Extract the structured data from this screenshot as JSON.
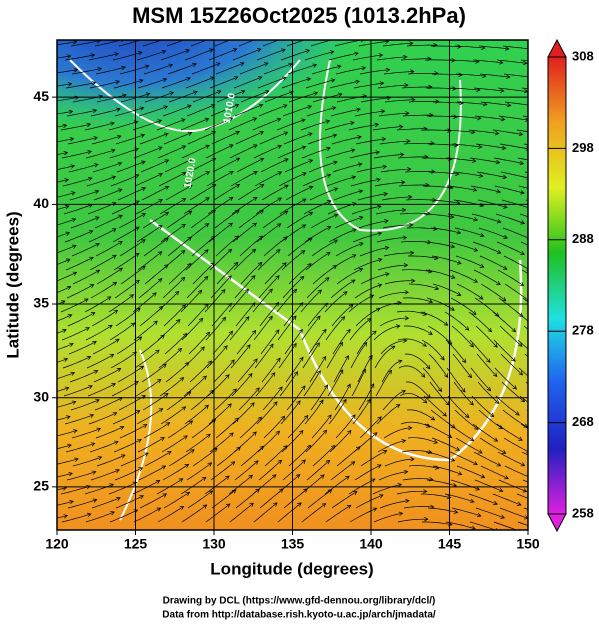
{
  "chart_data": {
    "type": "map",
    "title": "MSM 15Z26Oct2025 (1013.2hPa)",
    "projection": "mercator",
    "xlabel": "Longitude (degrees)",
    "ylabel": "Latitude  (degrees)",
    "xlim": [
      120,
      150
    ],
    "ylim": [
      22.5,
      47.5
    ],
    "xticks": [
      120,
      125,
      130,
      135,
      140,
      145,
      150
    ],
    "yticks": [
      25,
      30,
      35,
      40,
      45
    ],
    "grid": true,
    "colorbar": {
      "lim": [
        258,
        308
      ],
      "ticks": [
        258,
        268,
        278,
        288,
        298,
        308
      ],
      "colormap": [
        "#e020e0",
        "#2020c0",
        "#2060f0",
        "#20e0e0",
        "#20c020",
        "#e0f020",
        "#f0a020",
        "#e02020"
      ]
    },
    "annotations": [
      {
        "text": "1020.0",
        "lon": 128.5,
        "lat": 41.5
      },
      {
        "text": "1010.0",
        "lon": 131,
        "lat": 44.5
      }
    ]
  },
  "footer": [
    "Drawing by DCL (https://www.gfd-dennou.org/library/dcl/)",
    "Data from http://database.rish.kyoto-u.ac.jp/arch/jmadata/"
  ]
}
